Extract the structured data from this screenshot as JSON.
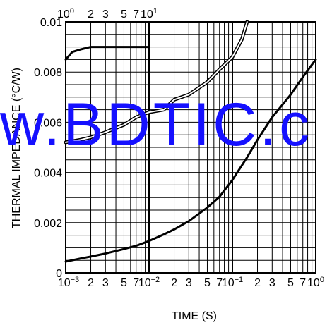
{
  "chart_data": {
    "type": "line",
    "xlabel": "TIME  (S)",
    "ylabel": "THERMAL IMPEDANCE  (°C/W)",
    "xscale": "log",
    "xlim": [
      0.001,
      1
    ],
    "ylim": [
      0,
      0.01
    ],
    "grid": true,
    "x_tick_labels_bottom": [
      "10−3",
      "2",
      "3",
      "5",
      "7",
      "10−2",
      "2",
      "3",
      "5",
      "7",
      "10−1",
      "2",
      "3",
      "5",
      "7",
      "100"
    ],
    "x_tick_labels_top": [
      "100",
      "2",
      "3",
      "5",
      "7",
      "101"
    ],
    "y_tick_labels": [
      "0",
      "0.002",
      "0.004",
      "0.006",
      "0.008",
      "0.01"
    ],
    "series": [
      {
        "style": "solid",
        "x": [
          0.001,
          0.0015,
          0.002,
          0.003,
          0.005,
          0.007,
          0.01,
          0.015,
          0.02,
          0.03,
          0.05,
          0.07,
          0.1,
          0.15,
          0.2,
          0.3,
          0.5,
          0.7,
          1
        ],
        "y": [
          0.00045,
          0.00057,
          0.00065,
          0.00077,
          0.00095,
          0.00108,
          0.00127,
          0.00153,
          0.00173,
          0.00206,
          0.0026,
          0.00303,
          0.0037,
          0.0046,
          0.0053,
          0.0062,
          0.0071,
          0.0078,
          0.0085
        ]
      },
      {
        "style": "solid",
        "x": [
          0.001,
          0.0012,
          0.0015,
          0.002,
          0.003,
          0.005,
          0.007,
          0.01
        ],
        "y": [
          0.0085,
          0.0088,
          0.0089,
          0.009,
          0.009,
          0.009,
          0.009,
          0.009
        ]
      },
      {
        "style": "double",
        "x": [
          0.001,
          0.0015,
          0.002,
          0.003,
          0.005,
          0.007,
          0.01,
          0.015,
          0.02,
          0.03,
          0.05,
          0.07,
          0.1,
          0.13,
          0.15
        ],
        "y": [
          0.0052,
          0.0053,
          0.0054,
          0.0056,
          0.0059,
          0.0062,
          0.0064,
          0.0065,
          0.0069,
          0.0071,
          0.0076,
          0.0081,
          0.0086,
          0.0093,
          0.01
        ]
      }
    ]
  },
  "watermark": "w.BDTIC.c"
}
